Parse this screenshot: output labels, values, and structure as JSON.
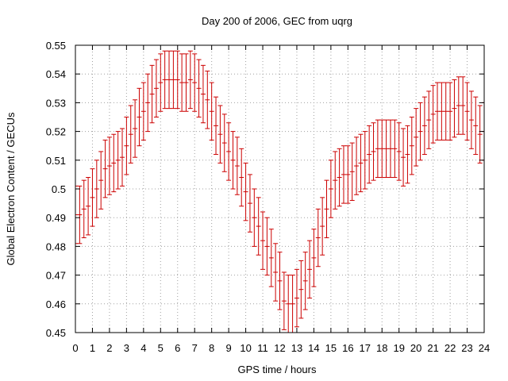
{
  "chart_data": {
    "type": "errorbar",
    "title": "Day 200 of 2006, GEC from uqrg",
    "xlabel": "GPS time / hours",
    "ylabel": "Global Electron Content / GECUs",
    "xlim": [
      0,
      24
    ],
    "ylim": [
      0.45,
      0.55
    ],
    "xticks": [
      0,
      1,
      2,
      3,
      4,
      5,
      6,
      7,
      8,
      9,
      10,
      11,
      12,
      13,
      14,
      15,
      16,
      17,
      18,
      19,
      20,
      21,
      22,
      23,
      24
    ],
    "yticks": [
      0.45,
      0.46,
      0.47,
      0.48,
      0.49,
      0.5,
      0.51,
      0.52,
      0.53,
      0.54,
      0.55
    ],
    "xtick_labels": [
      "0",
      "1",
      "2",
      "3",
      "4",
      "5",
      "6",
      "7",
      "8",
      "9",
      "10",
      "11",
      "12",
      "13",
      "14",
      "15",
      "16",
      "17",
      "18",
      "19",
      "20",
      "21",
      "22",
      "23",
      "24"
    ],
    "ytick_labels": [
      "0.45",
      "0.46",
      "0.47",
      "0.48",
      "0.49",
      "0.5",
      "0.51",
      "0.52",
      "0.53",
      "0.54",
      "0.55"
    ],
    "grid": true,
    "series_color": "#cc0000",
    "error": 0.01,
    "x": [
      0,
      0.25,
      0.5,
      0.75,
      1,
      1.25,
      1.5,
      1.75,
      2,
      2.25,
      2.5,
      2.75,
      3,
      3.25,
      3.5,
      3.75,
      4,
      4.25,
      4.5,
      4.75,
      5,
      5.25,
      5.5,
      5.75,
      6,
      6.25,
      6.5,
      6.75,
      7,
      7.25,
      7.5,
      7.75,
      8,
      8.25,
      8.5,
      8.75,
      9,
      9.25,
      9.5,
      9.75,
      10,
      10.25,
      10.5,
      10.75,
      11,
      11.25,
      11.5,
      11.75,
      12,
      12.25,
      12.5,
      12.75,
      13,
      13.25,
      13.5,
      13.75,
      14,
      14.25,
      14.5,
      14.75,
      15,
      15.25,
      15.5,
      15.75,
      16,
      16.25,
      16.5,
      16.75,
      17,
      17.25,
      17.5,
      17.75,
      18,
      18.25,
      18.5,
      18.75,
      19,
      19.25,
      19.5,
      19.75,
      20,
      20.25,
      20.5,
      20.75,
      21,
      21.25,
      21.5,
      21.75,
      22,
      22.25,
      22.5,
      22.75,
      23,
      23.25,
      23.5,
      23.75,
      24
    ],
    "y": [
      0.491,
      0.491,
      0.493,
      0.494,
      0.497,
      0.5,
      0.503,
      0.507,
      0.508,
      0.509,
      0.51,
      0.511,
      0.515,
      0.519,
      0.521,
      0.525,
      0.527,
      0.53,
      0.533,
      0.535,
      0.537,
      0.538,
      0.538,
      0.538,
      0.538,
      0.537,
      0.537,
      0.538,
      0.537,
      0.535,
      0.533,
      0.531,
      0.527,
      0.522,
      0.519,
      0.516,
      0.513,
      0.51,
      0.508,
      0.504,
      0.499,
      0.495,
      0.49,
      0.487,
      0.482,
      0.48,
      0.476,
      0.471,
      0.468,
      0.461,
      0.46,
      0.46,
      0.462,
      0.465,
      0.468,
      0.472,
      0.476,
      0.483,
      0.487,
      0.493,
      0.5,
      0.503,
      0.504,
      0.505,
      0.505,
      0.506,
      0.508,
      0.509,
      0.51,
      0.512,
      0.513,
      0.514,
      0.514,
      0.514,
      0.514,
      0.514,
      0.513,
      0.511,
      0.512,
      0.515,
      0.518,
      0.52,
      0.522,
      0.524,
      0.526,
      0.527,
      0.527,
      0.527,
      0.527,
      0.528,
      0.529,
      0.529,
      0.527,
      0.524,
      0.522,
      0.519,
      0.52
    ]
  }
}
